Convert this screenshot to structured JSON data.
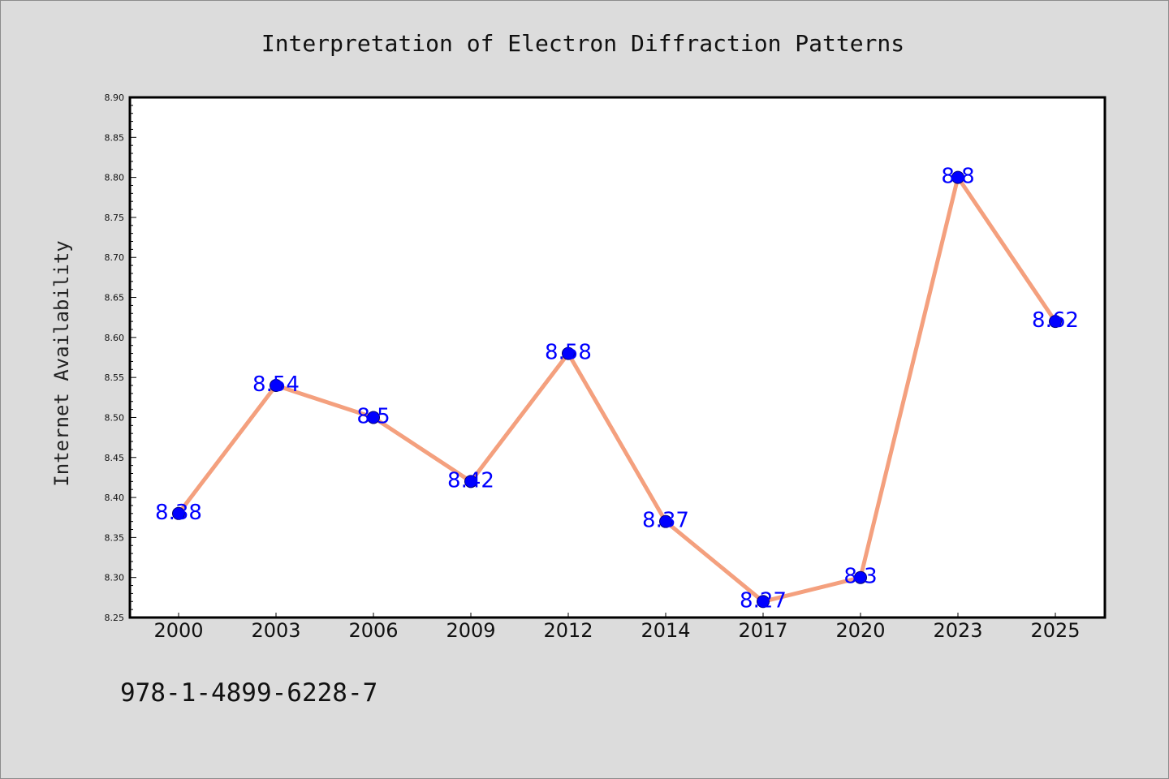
{
  "chart_data": {
    "type": "line",
    "title": "Interpretation of Electron Diffraction Patterns",
    "xlabel": "",
    "ylabel": "Internet Availability",
    "categories": [
      "2000",
      "2003",
      "2006",
      "2009",
      "2012",
      "2014",
      "2017",
      "2020",
      "2023",
      "2025"
    ],
    "series": [
      {
        "values": [
          8.38,
          8.54,
          8.5,
          8.42,
          8.58,
          8.37,
          8.27,
          8.3,
          8.8,
          8.62
        ]
      }
    ],
    "data_labels": [
      "8.38",
      "8.54",
      "8.5",
      "8.42",
      "8.58",
      "8.37",
      "8.27",
      "8.3",
      "8.8",
      "8.62"
    ],
    "ylim": [
      8.25,
      8.9
    ],
    "yticks": [
      "8.25",
      "8.30",
      "8.35",
      "8.40",
      "8.45",
      "8.50",
      "8.55",
      "8.60",
      "8.65",
      "8.70",
      "8.75",
      "8.80",
      "8.85",
      "8.90"
    ],
    "grid": false,
    "line_color": "#f4a07e",
    "marker_color": "#0000ff",
    "label_color": "#0000ff"
  },
  "footer": {
    "isbn": "978-1-4899-6228-7"
  }
}
